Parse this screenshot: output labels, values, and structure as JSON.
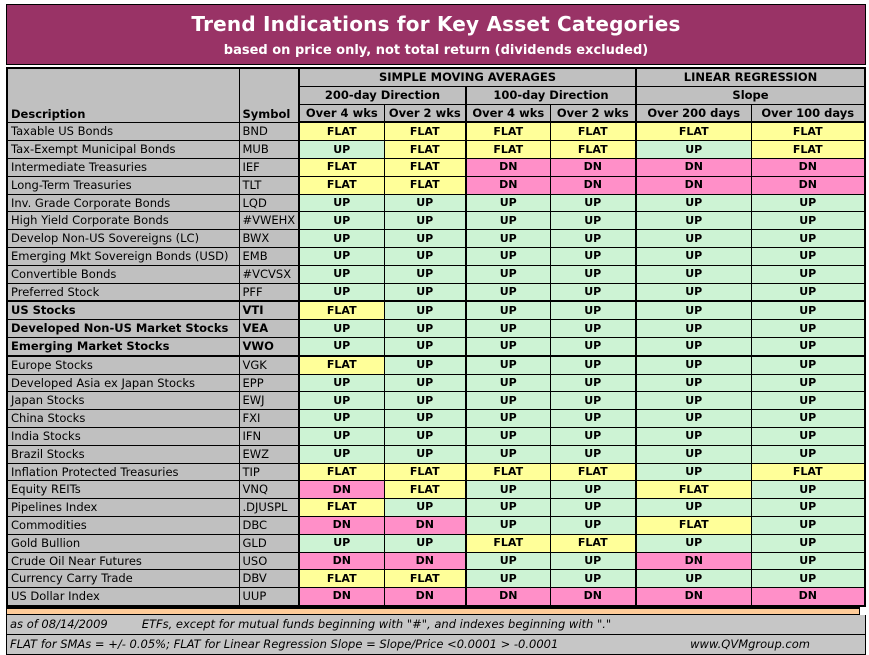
{
  "banner": {
    "title": "Trend Indications for Key Asset Categories",
    "subtitle": "based on price only, not total return (dividends excluded)"
  },
  "header": {
    "description": "Description",
    "symbol": "Symbol",
    "sma_group": "SIMPLE MOVING AVERAGES",
    "lr_group": "LINEAR REGRESSION",
    "sma_200": "200-day Direction",
    "sma_100": "100-day Direction",
    "lr_slope": "Slope",
    "sma200_4wks": "Over 4 wks",
    "sma200_2wks": "Over 2 wks",
    "sma100_4wks": "Over 4 wks",
    "sma100_2wks": "Over 2 wks",
    "lr_200days": "Over 200 days",
    "lr_100days": "Over 100 days"
  },
  "colors": {
    "banner_bg": "#993366",
    "gray": "#C0C0C0",
    "up": "#CDF3D4",
    "flat": "#FFFF99",
    "dn": "#FF8FC8",
    "sep": "#FFCC99"
  },
  "chart_data": {
    "type": "table",
    "title": "Trend Indications for Key Asset Categories",
    "value_domain": [
      "UP",
      "FLAT",
      "DN"
    ],
    "columns": [
      "Description",
      "Symbol",
      "SMA 200-day Direction Over 4 wks",
      "SMA 200-day Direction Over 2 wks",
      "SMA 100-day Direction Over 4 wks",
      "SMA 100-day Direction Over 2 wks",
      "Linear Regression Slope Over 200 days",
      "Linear Regression Slope Over 100 days"
    ],
    "rows": [
      {
        "description": "Taxable US Bonds",
        "symbol": "BND",
        "bold": false,
        "values": [
          "FLAT",
          "FLAT",
          "FLAT",
          "FLAT",
          "FLAT",
          "FLAT"
        ]
      },
      {
        "description": "Tax-Exempt Municipal Bonds",
        "symbol": "MUB",
        "bold": false,
        "values": [
          "UP",
          "FLAT",
          "FLAT",
          "FLAT",
          "UP",
          "FLAT"
        ]
      },
      {
        "description": "Intermediate Treasuries",
        "symbol": "IEF",
        "bold": false,
        "values": [
          "FLAT",
          "FLAT",
          "DN",
          "DN",
          "DN",
          "DN"
        ]
      },
      {
        "description": "Long-Term Treasuries",
        "symbol": "TLT",
        "bold": false,
        "values": [
          "FLAT",
          "FLAT",
          "DN",
          "DN",
          "DN",
          "DN"
        ]
      },
      {
        "description": "Inv. Grade Corporate Bonds",
        "symbol": "LQD",
        "bold": false,
        "values": [
          "UP",
          "UP",
          "UP",
          "UP",
          "UP",
          "UP"
        ]
      },
      {
        "description": "High Yield Corporate Bonds",
        "symbol": "#VWEHX",
        "bold": false,
        "values": [
          "UP",
          "UP",
          "UP",
          "UP",
          "UP",
          "UP"
        ]
      },
      {
        "description": "Develop Non-US Sovereigns (LC)",
        "symbol": "BWX",
        "bold": false,
        "values": [
          "UP",
          "UP",
          "UP",
          "UP",
          "UP",
          "UP"
        ]
      },
      {
        "description": "Emerging Mkt Sovereign Bonds (USD)",
        "symbol": "EMB",
        "bold": false,
        "values": [
          "UP",
          "UP",
          "UP",
          "UP",
          "UP",
          "UP"
        ]
      },
      {
        "description": "Convertible Bonds",
        "symbol": "#VCVSX",
        "bold": false,
        "values": [
          "UP",
          "UP",
          "UP",
          "UP",
          "UP",
          "UP"
        ]
      },
      {
        "description": "Preferred Stock",
        "symbol": "PFF",
        "bold": false,
        "values": [
          "UP",
          "UP",
          "UP",
          "UP",
          "UP",
          "UP"
        ]
      },
      {
        "description": "US Stocks",
        "symbol": "VTI",
        "bold": true,
        "values": [
          "FLAT",
          "UP",
          "UP",
          "UP",
          "UP",
          "UP"
        ]
      },
      {
        "description": "Developed Non-US Market Stocks",
        "symbol": "VEA",
        "bold": true,
        "values": [
          "UP",
          "UP",
          "UP",
          "UP",
          "UP",
          "UP"
        ]
      },
      {
        "description": "Emerging Market Stocks",
        "symbol": "VWO",
        "bold": true,
        "values": [
          "UP",
          "UP",
          "UP",
          "UP",
          "UP",
          "UP"
        ]
      },
      {
        "description": "Europe Stocks",
        "symbol": "VGK",
        "bold": false,
        "values": [
          "FLAT",
          "UP",
          "UP",
          "UP",
          "UP",
          "UP"
        ]
      },
      {
        "description": "Developed Asia ex Japan Stocks",
        "symbol": "EPP",
        "bold": false,
        "values": [
          "UP",
          "UP",
          "UP",
          "UP",
          "UP",
          "UP"
        ]
      },
      {
        "description": "Japan Stocks",
        "symbol": "EWJ",
        "bold": false,
        "values": [
          "UP",
          "UP",
          "UP",
          "UP",
          "UP",
          "UP"
        ]
      },
      {
        "description": "China Stocks",
        "symbol": "FXI",
        "bold": false,
        "values": [
          "UP",
          "UP",
          "UP",
          "UP",
          "UP",
          "UP"
        ]
      },
      {
        "description": "India Stocks",
        "symbol": "IFN",
        "bold": false,
        "values": [
          "UP",
          "UP",
          "UP",
          "UP",
          "UP",
          "UP"
        ]
      },
      {
        "description": "Brazil Stocks",
        "symbol": "EWZ",
        "bold": false,
        "values": [
          "UP",
          "UP",
          "UP",
          "UP",
          "UP",
          "UP"
        ]
      },
      {
        "description": "Inflation Protected Treasuries",
        "symbol": "TIP",
        "bold": false,
        "values": [
          "FLAT",
          "FLAT",
          "FLAT",
          "FLAT",
          "UP",
          "FLAT"
        ]
      },
      {
        "description": "Equity REITs",
        "symbol": "VNQ",
        "bold": false,
        "values": [
          "DN",
          "FLAT",
          "UP",
          "UP",
          "FLAT",
          "UP"
        ]
      },
      {
        "description": "Pipelines Index",
        "symbol": ".DJUSPL",
        "bold": false,
        "values": [
          "FLAT",
          "UP",
          "UP",
          "UP",
          "UP",
          "UP"
        ]
      },
      {
        "description": "Commodities",
        "symbol": "DBC",
        "bold": false,
        "values": [
          "DN",
          "DN",
          "UP",
          "UP",
          "FLAT",
          "UP"
        ]
      },
      {
        "description": "Gold Bullion",
        "symbol": "GLD",
        "bold": false,
        "values": [
          "UP",
          "UP",
          "FLAT",
          "FLAT",
          "UP",
          "UP"
        ]
      },
      {
        "description": "Crude Oil Near Futures",
        "symbol": "USO",
        "bold": false,
        "values": [
          "DN",
          "DN",
          "UP",
          "UP",
          "DN",
          "UP"
        ]
      },
      {
        "description": "Currency Carry Trade",
        "symbol": "DBV",
        "bold": false,
        "values": [
          "FLAT",
          "FLAT",
          "UP",
          "UP",
          "UP",
          "UP"
        ]
      },
      {
        "description": "US Dollar Index",
        "symbol": "UUP",
        "bold": false,
        "values": [
          "DN",
          "DN",
          "DN",
          "DN",
          "DN",
          "DN"
        ]
      }
    ]
  },
  "footer": {
    "as_of": "as of 08/14/2009",
    "note1": "ETFs, except for mutual funds beginning with \"#\", and indexes beginning with \".\"",
    "note2": "FLAT for SMAs = +/- 0.05%; FLAT for Linear Regression Slope = Slope/Price <0.0001 > -0.0001",
    "website": "www.QVMgroup.com"
  }
}
